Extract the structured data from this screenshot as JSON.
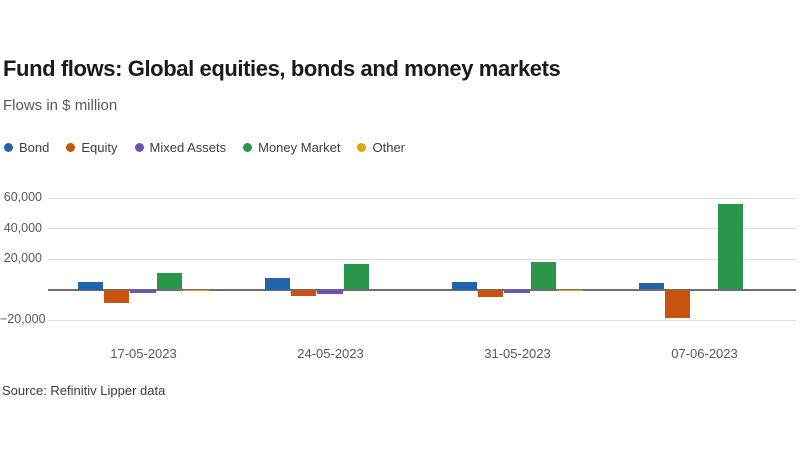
{
  "header": {
    "title": "Fund flows: Global equities, bonds and money markets",
    "subtitle": "Flows in $ million"
  },
  "source": "Source: Refinitiv Lipper data",
  "colors": {
    "title_text": "#1a1a1a",
    "subtitle_text": "#595959",
    "axis_label_text": "#595959",
    "legend_text": "#404040",
    "gridline": "#dedede",
    "zero_line": "#6f6f6f",
    "background": "#ffffff",
    "bond": "#2264a8",
    "equity": "#c75310",
    "mixed_assets": "#7052b0",
    "money_market": "#29964a",
    "other": "#d6a906"
  },
  "chart_data": {
    "type": "bar",
    "title": "Fund flows: Global equities, bonds and money markets",
    "subtitle": "Flows in $ million",
    "unit": "$ million",
    "categories": [
      "17-05-2023",
      "24-05-2023",
      "31-05-2023",
      "07-06-2023"
    ],
    "series": [
      {
        "name": "Bond",
        "color": "#2264a8",
        "values": [
          5000,
          7500,
          5000,
          4000
        ]
      },
      {
        "name": "Equity",
        "color": "#c75310",
        "values": [
          -9000,
          -4000,
          -5000,
          -18500
        ]
      },
      {
        "name": "Mixed Assets",
        "color": "#7052b0",
        "values": [
          -2500,
          -3000,
          -2500,
          -200
        ]
      },
      {
        "name": "Money Market",
        "color": "#29964a",
        "values": [
          10500,
          17000,
          18000,
          56000
        ]
      },
      {
        "name": "Other",
        "color": "#d6a906",
        "values": [
          -600,
          -200,
          -700,
          100
        ]
      }
    ],
    "ylim": [
      -20000,
      60000
    ],
    "yticks": [
      60000,
      40000,
      20000,
      -20000
    ],
    "ytick_labels": [
      "60,000",
      "40,000",
      "20,000",
      "−20,000"
    ],
    "zero_line": true,
    "grid": true,
    "legend_position": "top-left"
  }
}
